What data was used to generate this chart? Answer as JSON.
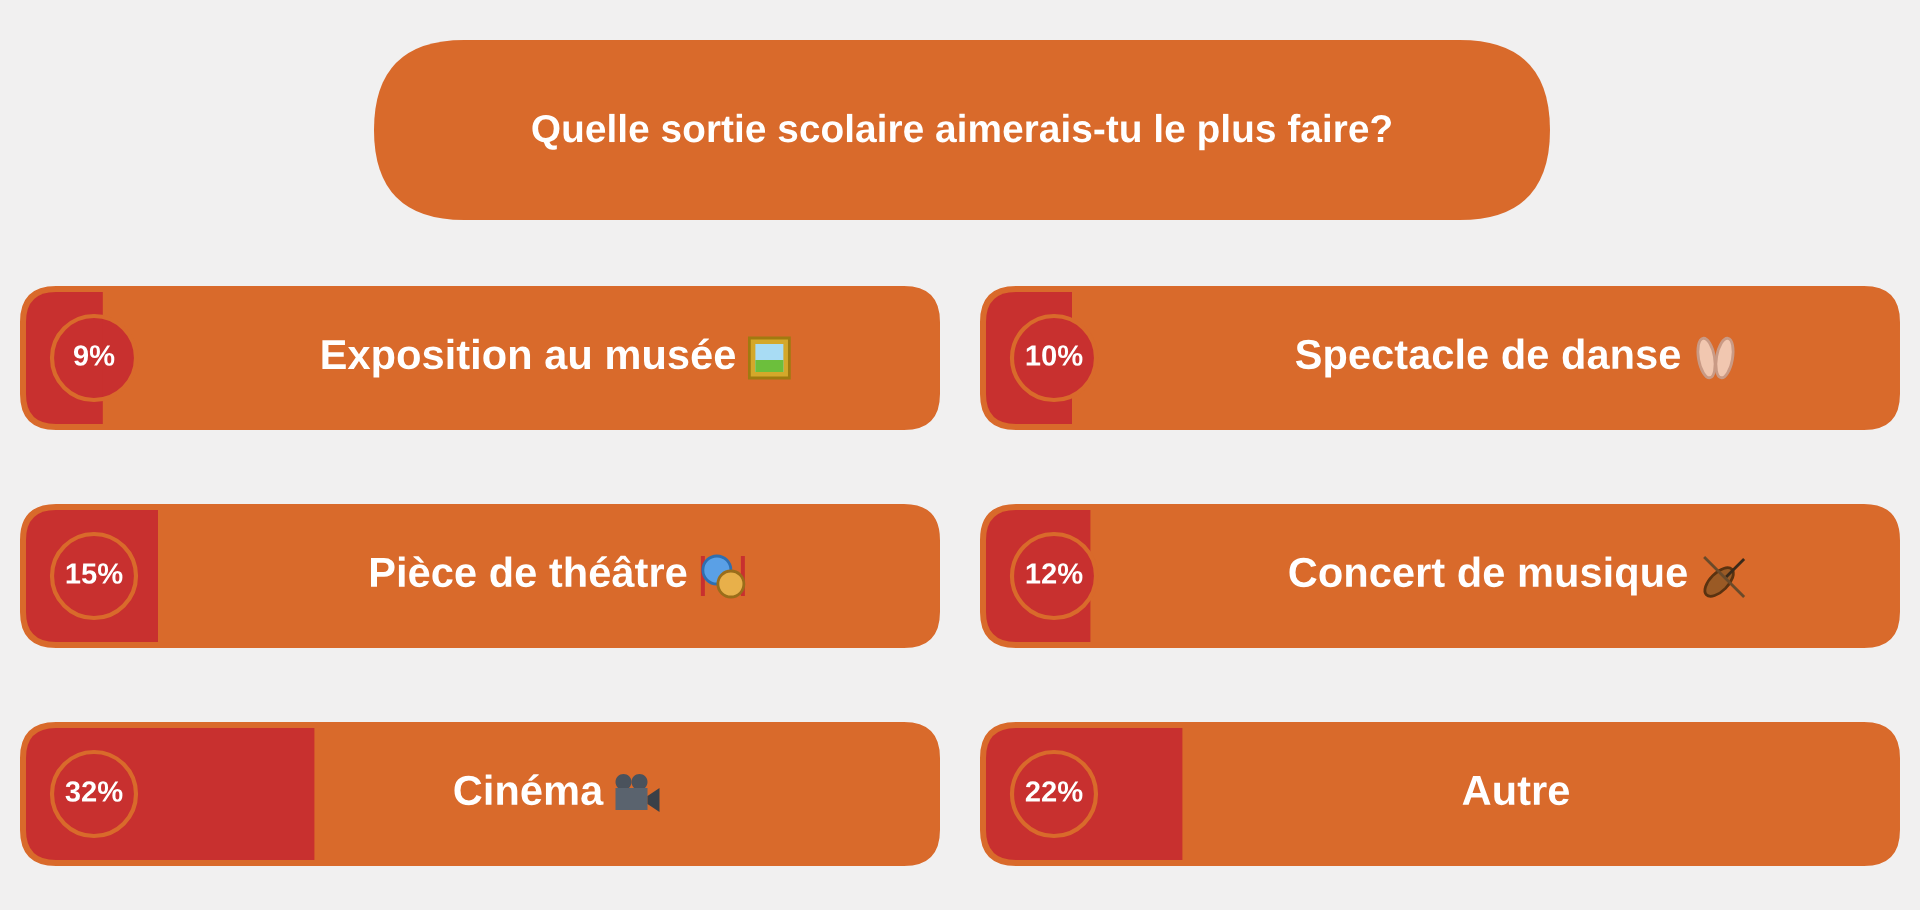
{
  "chart_data": [
    {
      "type": "bar",
      "orientation": "horizontal",
      "title": "Quelle sortie scolaire aimerais-tu le plus faire?",
      "categories": [
        "Exposition au musée",
        "Pièce de théâtre",
        "Cinéma"
      ],
      "values": [
        9,
        15,
        32
      ],
      "value_labels": [
        "9%",
        "15%",
        "32%"
      ],
      "color": "#c8302f",
      "xlim": [
        0,
        100
      ]
    },
    {
      "type": "bar",
      "orientation": "horizontal",
      "categories": [
        "Spectacle de danse",
        "Concert de musique",
        "Autre"
      ],
      "values": [
        10,
        12,
        22
      ],
      "value_labels": [
        "10%",
        "12%",
        "22%"
      ],
      "color": "#c8302f",
      "xlim": [
        0,
        100
      ]
    }
  ]
}
